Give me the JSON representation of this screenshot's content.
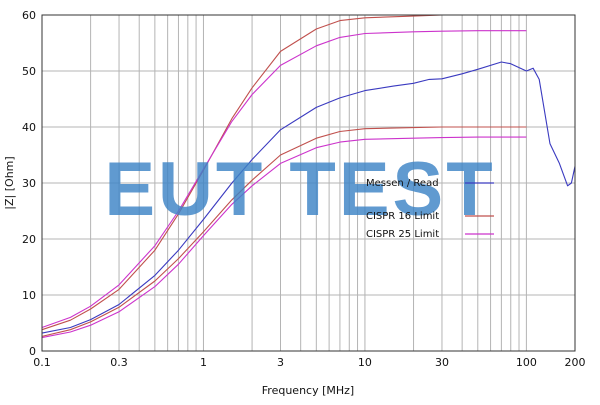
{
  "chart_data": {
    "type": "line",
    "title": "",
    "xlabel": "Frequency [MHz]",
    "ylabel": "|Z| [Ohm]",
    "xscale": "log",
    "xlim": [
      0.1,
      200
    ],
    "ylim": [
      0,
      60
    ],
    "grid": true,
    "legend_position": "center-right",
    "x_ticks": [
      {
        "v": 0.1,
        "label": "0.1"
      },
      {
        "v": 0.3,
        "label": "0.3"
      },
      {
        "v": 1,
        "label": "1"
      },
      {
        "v": 3,
        "label": "3"
      },
      {
        "v": 10,
        "label": "10"
      },
      {
        "v": 30,
        "label": "30"
      },
      {
        "v": 100,
        "label": "100"
      },
      {
        "v": 200,
        "label": "200"
      }
    ],
    "y_ticks": [
      {
        "v": 0,
        "label": "0"
      },
      {
        "v": 10,
        "label": "10"
      },
      {
        "v": 20,
        "label": "20"
      },
      {
        "v": 30,
        "label": "30"
      },
      {
        "v": 40,
        "label": "40"
      },
      {
        "v": 50,
        "label": "50"
      },
      {
        "v": 60,
        "label": "60"
      }
    ],
    "series": [
      {
        "name": "Messen / Read",
        "color": "#3a3ac0",
        "x": [
          0.1,
          0.15,
          0.2,
          0.3,
          0.5,
          0.7,
          1,
          1.5,
          2,
          3,
          5,
          7,
          10,
          15,
          20,
          25,
          30,
          40,
          50,
          70,
          80,
          100,
          110,
          120,
          140,
          160,
          180,
          190,
          200
        ],
        "y": [
          3.2,
          4.2,
          5.6,
          8.3,
          13.5,
          18,
          23.5,
          30,
          34.2,
          39.5,
          43.5,
          45.2,
          46.5,
          47.3,
          47.8,
          48.5,
          48.6,
          49.5,
          50.3,
          51.6,
          51.3,
          50,
          50.5,
          48.5,
          37,
          33.5,
          29.5,
          30,
          33
        ]
      },
      {
        "name": "CISPR 16 Limit",
        "color": "#c0504d",
        "x": [
          0.1,
          0.15,
          0.2,
          0.3,
          0.5,
          0.7,
          1,
          1.5,
          2,
          3,
          5,
          7,
          10,
          20,
          30,
          50,
          100
        ],
        "y": [
          3.8,
          5.5,
          7.5,
          11,
          18,
          24.5,
          32.3,
          41.5,
          47,
          53.5,
          57.5,
          59,
          59.5,
          59.8,
          60,
          60,
          60
        ]
      },
      {
        "name": "CISPR 16 Limit",
        "color": "#c0504d",
        "x": [
          0.1,
          0.15,
          0.2,
          0.3,
          0.5,
          0.7,
          1,
          1.5,
          2,
          3,
          5,
          7,
          10,
          20,
          30,
          50,
          100
        ],
        "y": [
          2.6,
          3.8,
          5.2,
          7.8,
          12.5,
          16.5,
          21.3,
          27,
          30.5,
          35,
          38,
          39.2,
          39.7,
          39.9,
          40,
          40,
          40
        ]
      },
      {
        "name": "CISPR 25 Limit",
        "color": "#cc33cc",
        "x": [
          0.1,
          0.15,
          0.2,
          0.3,
          0.5,
          0.7,
          1,
          1.5,
          2,
          3,
          5,
          7,
          10,
          20,
          30,
          50,
          100
        ],
        "y": [
          4.2,
          6,
          8,
          11.8,
          18.8,
          25,
          32.5,
          41,
          45.8,
          51,
          54.5,
          56,
          56.7,
          57,
          57.1,
          57.2,
          57.2
        ]
      },
      {
        "name": "CISPR 25 Limit",
        "color": "#cc33cc",
        "x": [
          0.1,
          0.15,
          0.2,
          0.3,
          0.5,
          0.7,
          1,
          1.5,
          2,
          3,
          5,
          7,
          10,
          20,
          30,
          50,
          100
        ],
        "y": [
          2.4,
          3.4,
          4.6,
          7,
          11.5,
          15.5,
          20.6,
          26.2,
          29.5,
          33.5,
          36.3,
          37.3,
          37.8,
          38,
          38.1,
          38.2,
          38.2
        ]
      }
    ],
    "legend": [
      {
        "label": "Messen / Read",
        "color": "#3a3ac0"
      },
      {
        "label": "CISPR 16 Limit",
        "color": "#c0504d"
      },
      {
        "label": "CISPR 25 Limit",
        "color": "#cc33cc"
      }
    ],
    "watermark": "EUT TEST"
  }
}
